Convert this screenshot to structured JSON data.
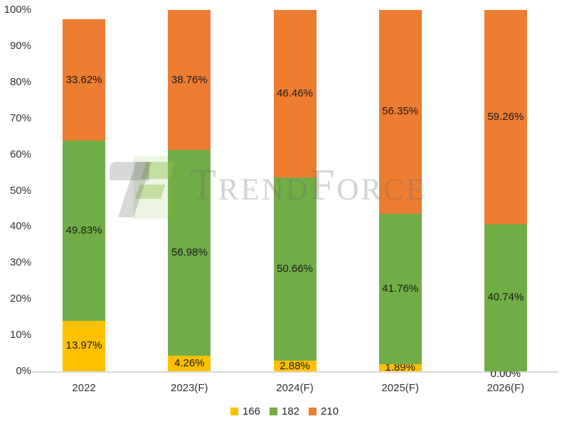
{
  "watermark": {
    "text": "TrendForce"
  },
  "legend": {
    "items": [
      {
        "label": "166",
        "color": "#FFC000"
      },
      {
        "label": "182",
        "color": "#70AD47"
      },
      {
        "label": "210",
        "color": "#ED7D31"
      }
    ]
  },
  "axis_color": "#d9d9d9",
  "chart_data": {
    "type": "bar",
    "subtype": "stacked-column-percent",
    "title": "",
    "xlabel": "",
    "ylabel": "",
    "categories": [
      "2022",
      "2023(F)",
      "2024(F)",
      "2025(F)",
      "2026(F)"
    ],
    "series": [
      {
        "name": "166",
        "color": "#FFC000",
        "values": [
          13.97,
          4.26,
          2.88,
          1.89,
          0.0
        ]
      },
      {
        "name": "182",
        "color": "#70AD47",
        "values": [
          49.83,
          56.98,
          50.66,
          41.76,
          40.74
        ]
      },
      {
        "name": "210",
        "color": "#ED7D31",
        "values": [
          33.62,
          38.76,
          46.46,
          56.35,
          59.26
        ]
      }
    ],
    "data_label_format": "0.00%",
    "y_ticks": [
      "0%",
      "10%",
      "20%",
      "30%",
      "40%",
      "50%",
      "60%",
      "70%",
      "80%",
      "90%",
      "100%"
    ],
    "ylim": [
      0,
      100
    ],
    "gridlines": false,
    "legend_position": "bottom"
  }
}
